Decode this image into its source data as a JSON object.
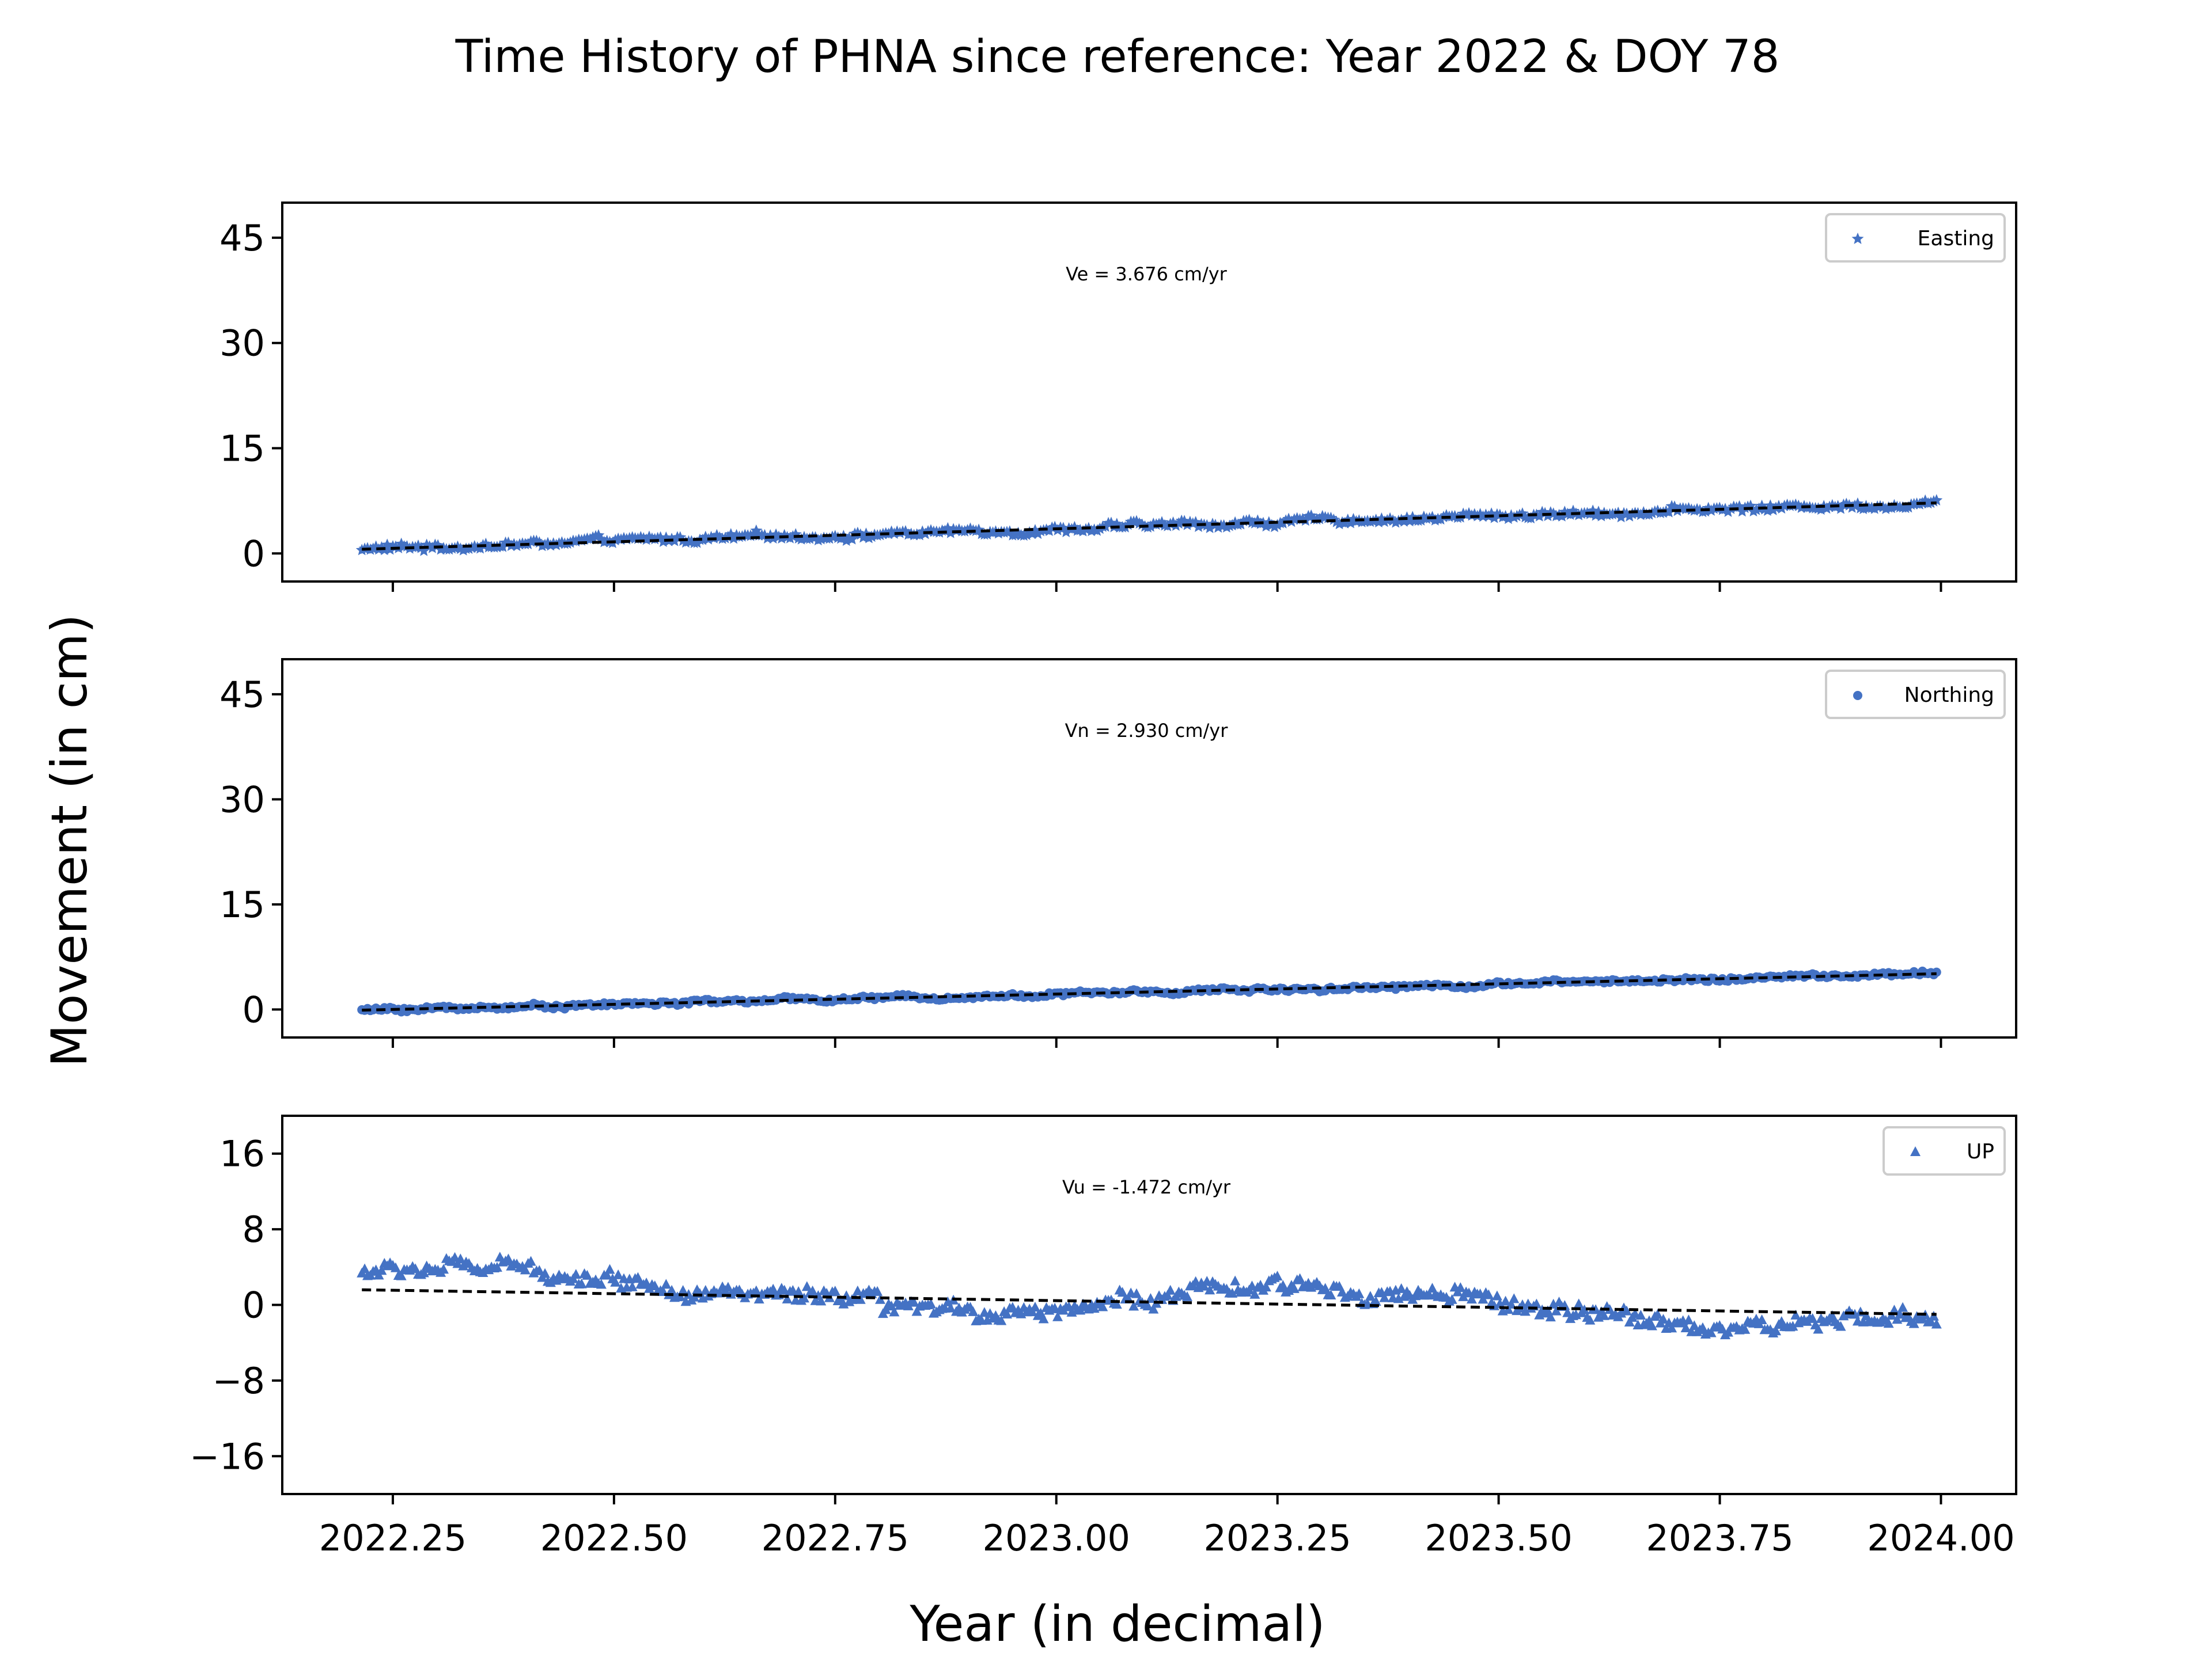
{
  "figure": {
    "title": "Time History of PHNA since reference: Year 2022 & DOY 78",
    "ylabel": "Movement (in cm)",
    "xlabel": "Year (in decimal)"
  },
  "colors": {
    "points": "#4472c4",
    "trend": "#000000",
    "axes": "#000000"
  },
  "chart_data": [
    {
      "type": "scatter",
      "panel": "easting",
      "legend": "Easting",
      "marker": "star",
      "velocity_label": "Ve =  3.676 cm/yr",
      "velocity_cm_per_yr": 3.676,
      "x_range": [
        2022.215,
        2023.995
      ],
      "y_start": 0.6,
      "y_end": 7.2,
      "noise_cm": 0.7,
      "ylim": [
        -4,
        50
      ],
      "yticks": [
        0,
        15,
        30,
        45
      ],
      "yticklabels": [
        "0",
        "15",
        "30",
        "45"
      ],
      "legend_position": "top-right"
    },
    {
      "type": "scatter",
      "panel": "northing",
      "legend": "Northing",
      "marker": "circle",
      "velocity_label": "Vn =  2.930 cm/yr",
      "velocity_cm_per_yr": 2.93,
      "x_range": [
        2022.215,
        2023.995
      ],
      "y_start": -0.1,
      "y_end": 5.1,
      "noise_cm": 0.45,
      "ylim": [
        -4,
        50
      ],
      "yticks": [
        0,
        15,
        30,
        45
      ],
      "yticklabels": [
        "0",
        "15",
        "30",
        "45"
      ],
      "legend_position": "top-right"
    },
    {
      "type": "scatter",
      "panel": "up",
      "legend": "UP",
      "marker": "triangle",
      "velocity_label": "Vu = -1.472 cm/yr",
      "velocity_cm_per_yr": -1.472,
      "x_range": [
        2022.215,
        2023.995
      ],
      "y_start": 1.6,
      "y_end": -1.0,
      "noise_cm": 1.3,
      "ylim": [
        -20,
        20
      ],
      "yticks": [
        -16,
        -8,
        0,
        8,
        16
      ],
      "yticklabels": [
        "−16",
        "−8",
        "0",
        "8",
        "16"
      ],
      "legend_position": "top-right"
    }
  ],
  "x_axis": {
    "xlim": [
      2022.125,
      2024.085
    ],
    "xticks": [
      2022.25,
      2022.5,
      2022.75,
      2023.0,
      2023.25,
      2023.5,
      2023.75,
      2024.0
    ],
    "xticklabels": [
      "2022.25",
      "2022.50",
      "2022.75",
      "2023.00",
      "2023.25",
      "2023.50",
      "2023.75",
      "2024.00"
    ]
  }
}
